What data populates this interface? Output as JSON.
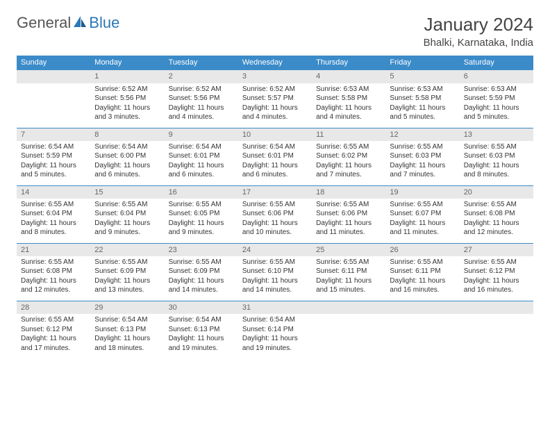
{
  "brand": {
    "general": "General",
    "blue": "Blue"
  },
  "title": "January 2024",
  "location": "Bhalki, Karnataka, India",
  "colors": {
    "header_bg": "#3b8bc9",
    "header_text": "#ffffff",
    "daynum_bg": "#e8e8e8",
    "daynum_text": "#666666",
    "body_text": "#333333",
    "title_text": "#444444",
    "brand_gray": "#555555",
    "brand_blue": "#2b78b8",
    "row_border": "#3b8bc9"
  },
  "day_names": [
    "Sunday",
    "Monday",
    "Tuesday",
    "Wednesday",
    "Thursday",
    "Friday",
    "Saturday"
  ],
  "weeks": [
    [
      null,
      {
        "n": "1",
        "sr": "Sunrise: 6:52 AM",
        "ss": "Sunset: 5:56 PM",
        "dl": "Daylight: 11 hours and 3 minutes."
      },
      {
        "n": "2",
        "sr": "Sunrise: 6:52 AM",
        "ss": "Sunset: 5:56 PM",
        "dl": "Daylight: 11 hours and 4 minutes."
      },
      {
        "n": "3",
        "sr": "Sunrise: 6:52 AM",
        "ss": "Sunset: 5:57 PM",
        "dl": "Daylight: 11 hours and 4 minutes."
      },
      {
        "n": "4",
        "sr": "Sunrise: 6:53 AM",
        "ss": "Sunset: 5:58 PM",
        "dl": "Daylight: 11 hours and 4 minutes."
      },
      {
        "n": "5",
        "sr": "Sunrise: 6:53 AM",
        "ss": "Sunset: 5:58 PM",
        "dl": "Daylight: 11 hours and 5 minutes."
      },
      {
        "n": "6",
        "sr": "Sunrise: 6:53 AM",
        "ss": "Sunset: 5:59 PM",
        "dl": "Daylight: 11 hours and 5 minutes."
      }
    ],
    [
      {
        "n": "7",
        "sr": "Sunrise: 6:54 AM",
        "ss": "Sunset: 5:59 PM",
        "dl": "Daylight: 11 hours and 5 minutes."
      },
      {
        "n": "8",
        "sr": "Sunrise: 6:54 AM",
        "ss": "Sunset: 6:00 PM",
        "dl": "Daylight: 11 hours and 6 minutes."
      },
      {
        "n": "9",
        "sr": "Sunrise: 6:54 AM",
        "ss": "Sunset: 6:01 PM",
        "dl": "Daylight: 11 hours and 6 minutes."
      },
      {
        "n": "10",
        "sr": "Sunrise: 6:54 AM",
        "ss": "Sunset: 6:01 PM",
        "dl": "Daylight: 11 hours and 6 minutes."
      },
      {
        "n": "11",
        "sr": "Sunrise: 6:55 AM",
        "ss": "Sunset: 6:02 PM",
        "dl": "Daylight: 11 hours and 7 minutes."
      },
      {
        "n": "12",
        "sr": "Sunrise: 6:55 AM",
        "ss": "Sunset: 6:03 PM",
        "dl": "Daylight: 11 hours and 7 minutes."
      },
      {
        "n": "13",
        "sr": "Sunrise: 6:55 AM",
        "ss": "Sunset: 6:03 PM",
        "dl": "Daylight: 11 hours and 8 minutes."
      }
    ],
    [
      {
        "n": "14",
        "sr": "Sunrise: 6:55 AM",
        "ss": "Sunset: 6:04 PM",
        "dl": "Daylight: 11 hours and 8 minutes."
      },
      {
        "n": "15",
        "sr": "Sunrise: 6:55 AM",
        "ss": "Sunset: 6:04 PM",
        "dl": "Daylight: 11 hours and 9 minutes."
      },
      {
        "n": "16",
        "sr": "Sunrise: 6:55 AM",
        "ss": "Sunset: 6:05 PM",
        "dl": "Daylight: 11 hours and 9 minutes."
      },
      {
        "n": "17",
        "sr": "Sunrise: 6:55 AM",
        "ss": "Sunset: 6:06 PM",
        "dl": "Daylight: 11 hours and 10 minutes."
      },
      {
        "n": "18",
        "sr": "Sunrise: 6:55 AM",
        "ss": "Sunset: 6:06 PM",
        "dl": "Daylight: 11 hours and 11 minutes."
      },
      {
        "n": "19",
        "sr": "Sunrise: 6:55 AM",
        "ss": "Sunset: 6:07 PM",
        "dl": "Daylight: 11 hours and 11 minutes."
      },
      {
        "n": "20",
        "sr": "Sunrise: 6:55 AM",
        "ss": "Sunset: 6:08 PM",
        "dl": "Daylight: 11 hours and 12 minutes."
      }
    ],
    [
      {
        "n": "21",
        "sr": "Sunrise: 6:55 AM",
        "ss": "Sunset: 6:08 PM",
        "dl": "Daylight: 11 hours and 12 minutes."
      },
      {
        "n": "22",
        "sr": "Sunrise: 6:55 AM",
        "ss": "Sunset: 6:09 PM",
        "dl": "Daylight: 11 hours and 13 minutes."
      },
      {
        "n": "23",
        "sr": "Sunrise: 6:55 AM",
        "ss": "Sunset: 6:09 PM",
        "dl": "Daylight: 11 hours and 14 minutes."
      },
      {
        "n": "24",
        "sr": "Sunrise: 6:55 AM",
        "ss": "Sunset: 6:10 PM",
        "dl": "Daylight: 11 hours and 14 minutes."
      },
      {
        "n": "25",
        "sr": "Sunrise: 6:55 AM",
        "ss": "Sunset: 6:11 PM",
        "dl": "Daylight: 11 hours and 15 minutes."
      },
      {
        "n": "26",
        "sr": "Sunrise: 6:55 AM",
        "ss": "Sunset: 6:11 PM",
        "dl": "Daylight: 11 hours and 16 minutes."
      },
      {
        "n": "27",
        "sr": "Sunrise: 6:55 AM",
        "ss": "Sunset: 6:12 PM",
        "dl": "Daylight: 11 hours and 16 minutes."
      }
    ],
    [
      {
        "n": "28",
        "sr": "Sunrise: 6:55 AM",
        "ss": "Sunset: 6:12 PM",
        "dl": "Daylight: 11 hours and 17 minutes."
      },
      {
        "n": "29",
        "sr": "Sunrise: 6:54 AM",
        "ss": "Sunset: 6:13 PM",
        "dl": "Daylight: 11 hours and 18 minutes."
      },
      {
        "n": "30",
        "sr": "Sunrise: 6:54 AM",
        "ss": "Sunset: 6:13 PM",
        "dl": "Daylight: 11 hours and 19 minutes."
      },
      {
        "n": "31",
        "sr": "Sunrise: 6:54 AM",
        "ss": "Sunset: 6:14 PM",
        "dl": "Daylight: 11 hours and 19 minutes."
      },
      null,
      null,
      null
    ]
  ]
}
